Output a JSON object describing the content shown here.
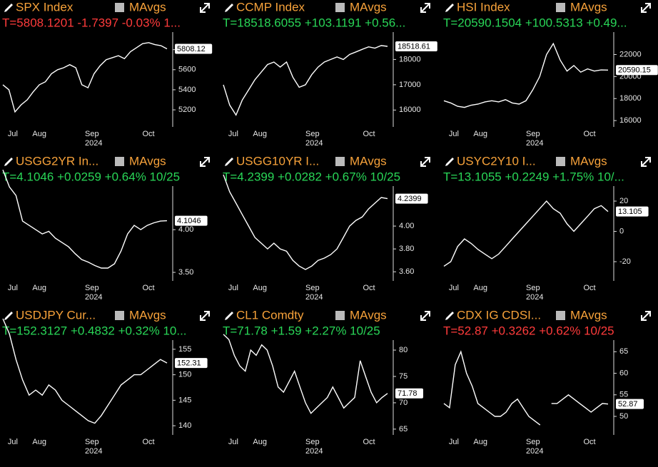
{
  "chart_data": [
    {
      "type": "line",
      "title": "SPX Index",
      "toggle_label": "MAvgs",
      "stats": "T=5808.1201 -1.7397 -0.03% 1...",
      "stats_color": "#ff3b3b",
      "color": "#ffffff",
      "x_labels": [
        "Jul",
        "Aug",
        "Sep",
        "Oct"
      ],
      "x_year": "2024",
      "last_label": "5808.12",
      "values": [
        5450,
        5400,
        5180,
        5250,
        5300,
        5380,
        5450,
        5480,
        5560,
        5600,
        5620,
        5650,
        5620,
        5450,
        5420,
        5560,
        5640,
        5700,
        5720,
        5740,
        5710,
        5780,
        5820,
        5860,
        5870,
        5850,
        5840,
        5808.12
      ],
      "ylim": [
        5030,
        5975
      ],
      "yticks": [
        5200,
        5400,
        5600,
        5800
      ]
    },
    {
      "type": "line",
      "title": "CCMP Index",
      "toggle_label": "MAvgs",
      "stats": "T=18518.6055 +103.1191 +0.56...",
      "stats_color": "#29d657",
      "color": "#ffffff",
      "x_labels": [
        "Jul",
        "Aug",
        "Sep",
        "Oct"
      ],
      "x_year": "2024",
      "last_label": "18518.61",
      "values": [
        17000,
        16200,
        15800,
        16400,
        16800,
        17200,
        17500,
        17800,
        17900,
        17700,
        17900,
        17300,
        16900,
        17000,
        17400,
        17700,
        17900,
        18000,
        18100,
        18000,
        18200,
        18300,
        18400,
        18500,
        18450,
        18550,
        18518.61
      ],
      "ylim": [
        15333,
        19083
      ],
      "yticks": [
        16000,
        17000,
        18000
      ]
    },
    {
      "type": "line",
      "title": "HSI Index",
      "toggle_label": "MAvgs",
      "stats": "T=20590.1504 +100.5313 +0.49...",
      "stats_color": "#29d657",
      "color": "#ffffff",
      "x_labels": [
        "Jul",
        "Aug",
        "Sep",
        "Oct"
      ],
      "x_year": "2024",
      "last_label": "20590.15",
      "values": [
        17800,
        17600,
        17300,
        17200,
        17400,
        17500,
        17700,
        17800,
        17700,
        17900,
        17600,
        17500,
        17800,
        18800,
        20000,
        22000,
        23000,
        21500,
        20500,
        21000,
        20400,
        20700,
        20500,
        20600,
        20590.15
      ],
      "ylim": [
        15425,
        24040
      ],
      "yticks": [
        16000,
        18000,
        20000,
        22000
      ]
    },
    {
      "type": "line",
      "title": "USGG2YR In...",
      "toggle_label": "MAvgs",
      "stats": "T=4.1046 +0.0259 +0.64% 10/25",
      "stats_color": "#29d657",
      "color": "#ffffff",
      "x_labels": [
        "Jul",
        "Aug",
        "Sep",
        "Oct"
      ],
      "x_year": "2024",
      "last_label": "4.1046",
      "values": [
        4.7,
        4.5,
        4.4,
        4.1,
        4.05,
        4.0,
        3.95,
        3.98,
        3.9,
        3.85,
        3.8,
        3.72,
        3.65,
        3.62,
        3.58,
        3.55,
        3.55,
        3.6,
        3.75,
        3.95,
        4.05,
        4.0,
        4.05,
        4.08,
        4.1,
        4.1046
      ],
      "ylim": [
        3.4,
        4.51
      ],
      "yticks": [
        {
          "value": 3.5,
          "label": "3.50"
        },
        {
          "value": 4,
          "label": "4.00"
        }
      ]
    },
    {
      "type": "line",
      "title": "USGG10YR I...",
      "toggle_label": "MAvgs",
      "stats": "T=4.2399 +0.0282 +0.67% 10/25",
      "stats_color": "#29d657",
      "color": "#ffffff",
      "x_labels": [
        "Jul",
        "Aug",
        "Sep",
        "Oct"
      ],
      "x_year": "2024",
      "last_label": "4.2399",
      "values": [
        4.45,
        4.3,
        4.2,
        4.1,
        4.0,
        3.9,
        3.85,
        3.8,
        3.85,
        3.8,
        3.78,
        3.7,
        3.65,
        3.62,
        3.65,
        3.7,
        3.72,
        3.75,
        3.8,
        3.9,
        4.0,
        4.05,
        4.08,
        4.15,
        4.2,
        4.25,
        4.2399
      ],
      "ylim": [
        3.52,
        4.35
      ],
      "yticks": [
        {
          "value": 3.6,
          "label": "3.60"
        },
        {
          "value": 3.8,
          "label": "3.80"
        },
        {
          "value": 4,
          "label": "4.00"
        }
      ]
    },
    {
      "type": "line",
      "title": "USYC2Y10 I...",
      "toggle_label": "MAvgs",
      "stats": "T=13.1055 +0.2249 +1.75% 10/...",
      "stats_color": "#29d657",
      "color": "#ffffff",
      "x_labels": [
        "Jul",
        "Aug",
        "Sep",
        "Oct"
      ],
      "x_year": "2024",
      "last_label": "13.105",
      "values": [
        -23,
        -20,
        -10,
        -5,
        -8,
        -12,
        -15,
        -18,
        -15,
        -10,
        -5,
        0,
        5,
        10,
        15,
        20,
        15,
        12,
        5,
        0,
        5,
        10,
        15,
        17,
        13.1055
      ],
      "ylim": [
        -32.7,
        29.9
      ],
      "yticks": [
        -20,
        0,
        20
      ]
    },
    {
      "type": "line",
      "title": "USDJPY Cur...",
      "toggle_label": "MAvgs",
      "stats": "T=152.3127 +0.4832 +0.32% 10...",
      "stats_color": "#29d657",
      "color": "#ffffff",
      "x_labels": [
        "Jul",
        "Aug",
        "Sep",
        "Oct"
      ],
      "x_year": "2024",
      "last_label": "152.31",
      "values": [
        161,
        158,
        153,
        149,
        146,
        147,
        146,
        148,
        147,
        145,
        144,
        143,
        142,
        141,
        140.5,
        142,
        144,
        146,
        148,
        149,
        150,
        150,
        151,
        152,
        153,
        152.31
      ],
      "ylim": [
        138.2,
        156.8
      ],
      "yticks": [
        140,
        145,
        150,
        155
      ]
    },
    {
      "type": "line",
      "title": "CL1 Comdty",
      "toggle_label": "MAvgs",
      "stats": "T=71.78 +1.59 +2.27% 10/25",
      "stats_color": "#29d657",
      "color": "#ffffff",
      "x_labels": [
        "Jul",
        "Aug",
        "Sep",
        "Oct"
      ],
      "x_year": "2024",
      "last_label": "71.78",
      "values": [
        83,
        82,
        79,
        77,
        76,
        80,
        79,
        81,
        80,
        77,
        73,
        72,
        74,
        76,
        73,
        70,
        68,
        69,
        70,
        71,
        73,
        71,
        69,
        70,
        71,
        78,
        75,
        72,
        70,
        71,
        71.78
      ],
      "ylim": [
        63.9,
        81.9
      ],
      "yticks": [
        65,
        70,
        75,
        80
      ]
    },
    {
      "type": "line",
      "title": "CDX IG CDSI...",
      "toggle_label": "MAvgs",
      "stats": "T=52.87 +0.3262 +0.62% 10/25",
      "stats_color": "#ff3b3b",
      "color": "#ffffff",
      "x_labels": [
        "Jul",
        "Aug",
        "Sep",
        "Oct"
      ],
      "x_year": "2024",
      "last_label": "52.87",
      "values": [
        53,
        52,
        62,
        65,
        60,
        57,
        53,
        52,
        51,
        50,
        50,
        51,
        53,
        54,
        52,
        50,
        49,
        48,
        null,
        53,
        53,
        54,
        55,
        54,
        53,
        52,
        51,
        52,
        53,
        52.87
      ],
      "ylim": [
        45.7,
        67.7
      ],
      "yticks": [
        50,
        55,
        60,
        65
      ]
    }
  ]
}
